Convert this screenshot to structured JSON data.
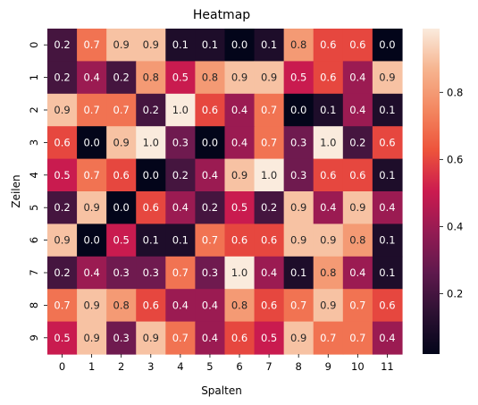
{
  "chart_data": {
    "type": "heatmap",
    "title": "Heatmap",
    "xlabel": "Spalten",
    "ylabel": "Zeilen",
    "x_categories": [
      "0",
      "1",
      "2",
      "3",
      "4",
      "5",
      "6",
      "7",
      "8",
      "9",
      "10",
      "11"
    ],
    "y_categories": [
      "0",
      "1",
      "2",
      "3",
      "4",
      "5",
      "6",
      "7",
      "8",
      "9"
    ],
    "values": [
      [
        0.2,
        0.7,
        0.9,
        0.9,
        0.1,
        0.1,
        0.0,
        0.1,
        0.8,
        0.6,
        0.6,
        0.0
      ],
      [
        0.2,
        0.4,
        0.2,
        0.8,
        0.5,
        0.8,
        0.9,
        0.9,
        0.5,
        0.6,
        0.4,
        0.9
      ],
      [
        0.9,
        0.7,
        0.7,
        0.2,
        1.0,
        0.6,
        0.4,
        0.7,
        0.0,
        0.1,
        0.4,
        0.1
      ],
      [
        0.6,
        0.0,
        0.9,
        1.0,
        0.3,
        0.0,
        0.4,
        0.7,
        0.3,
        1.0,
        0.2,
        0.6
      ],
      [
        0.5,
        0.7,
        0.6,
        0.0,
        0.2,
        0.4,
        0.9,
        1.0,
        0.3,
        0.6,
        0.6,
        0.1
      ],
      [
        0.2,
        0.9,
        0.0,
        0.6,
        0.4,
        0.2,
        0.5,
        0.2,
        0.9,
        0.4,
        0.9,
        0.4
      ],
      [
        0.9,
        0.0,
        0.5,
        0.1,
        0.1,
        0.7,
        0.6,
        0.6,
        0.9,
        0.9,
        0.8,
        0.1
      ],
      [
        0.2,
        0.4,
        0.3,
        0.3,
        0.7,
        0.3,
        1.0,
        0.4,
        0.1,
        0.8,
        0.4,
        0.1
      ],
      [
        0.7,
        0.9,
        0.8,
        0.6,
        0.4,
        0.4,
        0.8,
        0.6,
        0.7,
        0.9,
        0.7,
        0.6
      ],
      [
        0.5,
        0.9,
        0.3,
        0.9,
        0.7,
        0.4,
        0.6,
        0.5,
        0.9,
        0.7,
        0.7,
        0.4
      ]
    ],
    "value_format": "0.0",
    "colormap": "rocket",
    "colorbar": {
      "range": [
        0.02,
        0.99
      ],
      "ticks": [
        "0.2",
        "0.4",
        "0.6",
        "0.8"
      ]
    },
    "grid": false
  }
}
